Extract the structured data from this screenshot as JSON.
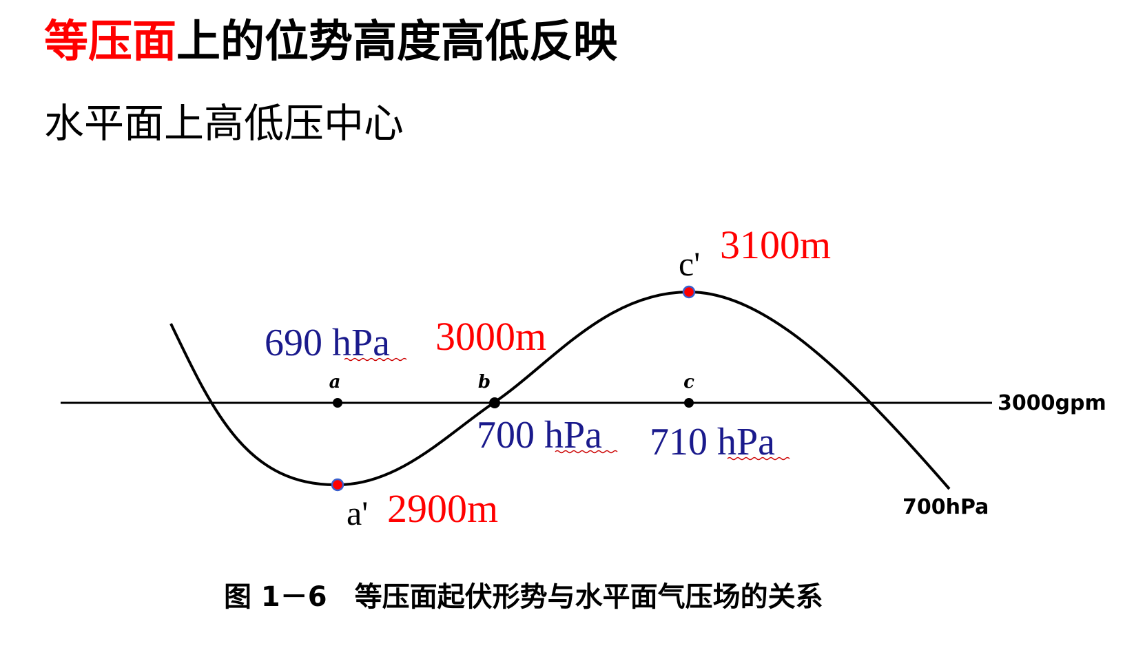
{
  "title": {
    "highlight": "等压面",
    "rest": "上的位势高度高低反映"
  },
  "subtitle": "水平面上高低压中心",
  "diagram": {
    "reference_line_label": "3000gpm",
    "surface_label": "700hPa",
    "points": {
      "a": "a",
      "b": "b",
      "c": "c",
      "a_prime": "a'",
      "c_prime": "c'"
    },
    "heights": {
      "a_prime": "2900m",
      "b": "3000m",
      "c_prime": "3100m"
    },
    "pressures": {
      "a": "690 hPa",
      "b": "700 hPa",
      "c": "710 hPa"
    },
    "colors": {
      "height_text": "#ff0000",
      "pressure_text": "#1a1a8c",
      "marker_fill": "#ff0000",
      "marker_outline": "#3a5fcd",
      "underline": "#cc0000"
    }
  },
  "caption": "图 1－6　等压面起伏形势与水平面气压场的关系"
}
